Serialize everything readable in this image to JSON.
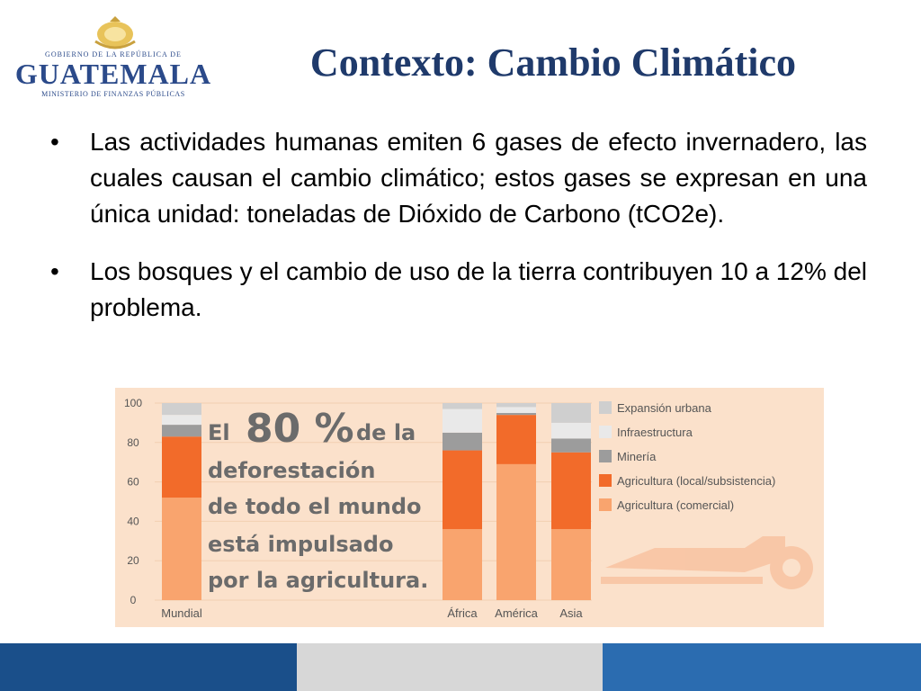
{
  "logo": {
    "line1": "GOBIERNO DE LA REPÚBLICA DE",
    "line2": "GUATEMALA",
    "line3": "MINISTERIO DE FINANZAS PÚBLICAS"
  },
  "slide": {
    "title": "Contexto: Cambio Climático",
    "bullets": [
      "Las actividades humanas emiten 6 gases de efecto invernadero, las cuales causan el cambio climático; estos gases se expresan en una única unidad: toneladas de Dióxido de Carbono (tCO2e).",
      "Los bosques y el cambio de uso de la tierra contribuyen 10 a 12% del problema."
    ],
    "bullet_symbol": "•"
  },
  "chart_data": {
    "type": "bar",
    "stacked": true,
    "categories": [
      "Mundial",
      "África",
      "América",
      "Asia"
    ],
    "series": [
      {
        "name": "Agricultura (comercial)",
        "color": "#f9a46e",
        "values": [
          52,
          36,
          69,
          36
        ]
      },
      {
        "name": "Agricultura (local/subsistencia)",
        "color": "#f26b2a",
        "values": [
          31,
          40,
          25,
          39
        ]
      },
      {
        "name": "Minería",
        "color": "#9c9c9c",
        "values": [
          6,
          9,
          1,
          7
        ]
      },
      {
        "name": "Infraestructura",
        "color": "#e9e9e9",
        "values": [
          5,
          12,
          3,
          8
        ]
      },
      {
        "name": "Expansión urbana",
        "color": "#cfcfcf",
        "values": [
          6,
          3,
          2,
          10
        ]
      }
    ],
    "yticks": [
      0,
      20,
      40,
      60,
      80,
      100
    ],
    "ylim": [
      0,
      100
    ],
    "grid": true,
    "legend": "right",
    "annotation": {
      "lines": [
        "de la",
        "deforestación",
        "de todo el mundo",
        "está impulsado",
        "por la agricultura."
      ],
      "big_prefix": "El",
      "big_value": "80 %"
    },
    "colors": {
      "background": "#fbe1cb",
      "axis_text": "#555555",
      "annotation_text": "#6b6b6b",
      "grid": "#f2cfb1"
    }
  },
  "footer": {
    "colors": {
      "dark": "#1a4f8a",
      "mid": "#2b6cb0",
      "light": "#d7d7d7"
    }
  }
}
